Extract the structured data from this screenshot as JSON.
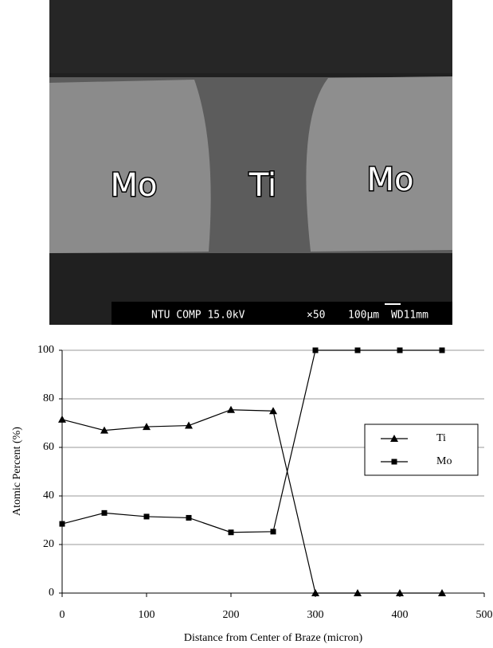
{
  "micrograph": {
    "labels": [
      "Mo",
      "Ti",
      "Mo"
    ],
    "info": [
      "NTU COMP 15.0kV",
      "×50",
      "100μm",
      "WD11mm"
    ]
  },
  "chart_data": {
    "type": "line",
    "x_label": "Distance from Center of Braze (micron)",
    "y_label": "Atomic Percent (%)",
    "x": [
      0,
      50,
      100,
      150,
      200,
      250,
      300,
      350,
      400,
      450
    ],
    "series": [
      {
        "name": "Ti",
        "color": "#000000",
        "marker": "triangle",
        "values": [
          71.5,
          67,
          68.5,
          69,
          75.5,
          75,
          0,
          0,
          0,
          0
        ]
      },
      {
        "name": "Mo",
        "color": "#000000",
        "marker": "square",
        "values": [
          28.5,
          33,
          31.5,
          31,
          25,
          25.3,
          100,
          100,
          100,
          100
        ]
      }
    ],
    "xlim": [
      0,
      500
    ],
    "xticks": [
      0,
      100,
      200,
      300,
      400,
      500
    ],
    "ylim": [
      0,
      100
    ],
    "yticks": [
      0,
      20,
      40,
      60,
      80,
      100
    ],
    "grid": true,
    "legend": "right"
  }
}
